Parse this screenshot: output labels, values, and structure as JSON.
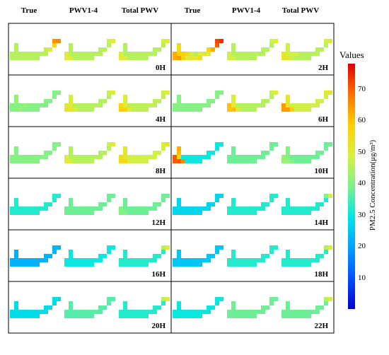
{
  "chart_data": {
    "type": "heatmap",
    "column_headers": [
      "True",
      "PWV1-4",
      "Total PWV",
      "True",
      "PWV1-4",
      "Total PWV"
    ],
    "panels": [
      {
        "hour": "0H",
        "values": {
          "True": [
            45,
            45,
            45,
            45,
            45,
            45,
            45,
            45,
            45,
            45,
            45,
            45,
            45,
            45,
            45,
            45,
            45,
            45,
            46,
            50,
            57,
            65,
            66
          ],
          "PWV1-4": [
            50,
            50,
            50,
            45,
            45,
            45,
            45,
            45,
            45,
            45,
            45,
            45,
            45,
            45,
            45,
            45,
            45,
            45,
            45,
            45,
            45,
            48,
            50
          ],
          "Total PWV": [
            50,
            50,
            50,
            45,
            45,
            45,
            45,
            45,
            45,
            45,
            45,
            45,
            45,
            45,
            45,
            45,
            45,
            45,
            45,
            45,
            45,
            48,
            50
          ]
        }
      },
      {
        "hour": "2H",
        "values": {
          "True": [
            62,
            62,
            64,
            58,
            55,
            55,
            58,
            58,
            55,
            48,
            45,
            50,
            52,
            52,
            55,
            50,
            52,
            50,
            56,
            62,
            70,
            72,
            74
          ],
          "PWV1-4": [
            48,
            48,
            48,
            45,
            45,
            45,
            45,
            45,
            45,
            45,
            45,
            45,
            45,
            45,
            45,
            45,
            45,
            45,
            45,
            45,
            45,
            48,
            50
          ],
          "Total PWV": [
            52,
            52,
            52,
            48,
            48,
            48,
            48,
            48,
            48,
            46,
            45,
            45,
            45,
            45,
            45,
            45,
            45,
            45,
            45,
            45,
            45,
            48,
            50
          ]
        }
      },
      {
        "hour": "4H",
        "values": {
          "True": [
            40,
            40,
            40,
            42,
            42,
            42,
            40,
            40,
            42,
            40,
            40,
            40,
            40,
            40,
            40,
            40,
            40,
            40,
            40,
            40,
            40,
            40,
            40
          ],
          "PWV1-4": [
            50,
            52,
            52,
            48,
            48,
            50,
            50,
            45,
            45,
            45,
            45,
            45,
            45,
            45,
            45,
            45,
            45,
            45,
            45,
            45,
            45,
            48,
            50
          ],
          "Total PWV": [
            57,
            58,
            58,
            50,
            50,
            50,
            50,
            46,
            46,
            46,
            46,
            46,
            46,
            46,
            46,
            46,
            46,
            46,
            46,
            46,
            46,
            48,
            50
          ]
        }
      },
      {
        "hour": "6H",
        "values": {
          "True": [
            40,
            40,
            40,
            40,
            40,
            40,
            40,
            40,
            40,
            40,
            40,
            40,
            40,
            40,
            40,
            40,
            40,
            40,
            40,
            40,
            40,
            40,
            40
          ],
          "PWV1-4": [
            60,
            60,
            60,
            50,
            50,
            50,
            50,
            45,
            45,
            45,
            45,
            45,
            45,
            45,
            45,
            45,
            45,
            45,
            45,
            45,
            45,
            48,
            50
          ],
          "Total PWV": [
            64,
            64,
            64,
            58,
            52,
            52,
            52,
            48,
            48,
            48,
            48,
            48,
            48,
            48,
            48,
            48,
            48,
            48,
            48,
            48,
            48,
            50,
            52
          ]
        }
      },
      {
        "hour": "8H",
        "values": {
          "True": [
            40,
            40,
            40,
            40,
            40,
            40,
            40,
            40,
            40,
            40,
            40,
            40,
            40,
            40,
            40,
            40,
            40,
            40,
            40,
            40,
            40,
            40,
            40
          ],
          "PWV1-4": [
            50,
            50,
            50,
            45,
            45,
            45,
            45,
            45,
            45,
            45,
            45,
            45,
            45,
            45,
            45,
            45,
            45,
            45,
            45,
            45,
            45,
            48,
            50
          ],
          "Total PWV": [
            55,
            55,
            55,
            50,
            50,
            52,
            52,
            48,
            48,
            48,
            48,
            48,
            48,
            48,
            48,
            48,
            48,
            48,
            48,
            48,
            48,
            50,
            52
          ]
        }
      },
      {
        "hour": "10H",
        "values": {
          "True": [
            70,
            70,
            70,
            66,
            62,
            60,
            58,
            30,
            30,
            30,
            30,
            30,
            30,
            30,
            30,
            30,
            30,
            30,
            30,
            30,
            30,
            30,
            30
          ],
          "PWV1-4": [
            38,
            38,
            38,
            38,
            38,
            38,
            38,
            38,
            38,
            38,
            38,
            38,
            38,
            38,
            38,
            38,
            38,
            38,
            38,
            38,
            38,
            38,
            38
          ],
          "Total PWV": [
            42,
            42,
            42,
            40,
            40,
            40,
            40,
            38,
            38,
            38,
            38,
            38,
            38,
            38,
            38,
            38,
            38,
            38,
            38,
            38,
            38,
            38,
            38
          ]
        }
      },
      {
        "hour": "12H",
        "values": {
          "True": [
            32,
            32,
            32,
            32,
            32,
            32,
            32,
            32,
            32,
            32,
            32,
            32,
            32,
            32,
            32,
            32,
            32,
            32,
            32,
            32,
            32,
            32,
            32
          ],
          "PWV1-4": [
            38,
            38,
            38,
            38,
            38,
            38,
            38,
            38,
            38,
            38,
            38,
            38,
            38,
            38,
            38,
            38,
            38,
            38,
            38,
            38,
            38,
            38,
            38
          ],
          "Total PWV": [
            40,
            40,
            40,
            38,
            38,
            38,
            38,
            38,
            38,
            38,
            38,
            38,
            38,
            38,
            38,
            38,
            38,
            38,
            38,
            38,
            38,
            38,
            38
          ]
        }
      },
      {
        "hour": "14H",
        "values": {
          "True": [
            27,
            27,
            27,
            27,
            27,
            27,
            27,
            27,
            27,
            27,
            27,
            27,
            27,
            27,
            27,
            27,
            27,
            27,
            27,
            27,
            27,
            27,
            27
          ],
          "PWV1-4": [
            32,
            32,
            32,
            32,
            32,
            32,
            32,
            32,
            32,
            32,
            32,
            32,
            32,
            32,
            32,
            32,
            32,
            32,
            32,
            32,
            32,
            32,
            32
          ],
          "Total PWV": [
            32,
            32,
            32,
            32,
            32,
            32,
            32,
            32,
            32,
            32,
            32,
            32,
            32,
            32,
            32,
            32,
            32,
            32,
            32,
            32,
            32,
            40,
            48
          ]
        }
      },
      {
        "hour": "16H",
        "values": {
          "True": [
            22,
            22,
            22,
            22,
            22,
            22,
            22,
            22,
            22,
            22,
            22,
            22,
            22,
            22,
            22,
            22,
            22,
            22,
            22,
            22,
            22,
            22,
            22
          ],
          "PWV1-4": [
            30,
            30,
            30,
            30,
            30,
            30,
            30,
            30,
            30,
            30,
            30,
            30,
            30,
            30,
            30,
            30,
            30,
            30,
            30,
            30,
            30,
            30,
            30
          ],
          "Total PWV": [
            32,
            32,
            32,
            32,
            32,
            32,
            32,
            32,
            32,
            32,
            32,
            32,
            32,
            32,
            32,
            32,
            32,
            32,
            32,
            32,
            32,
            45,
            50
          ]
        }
      },
      {
        "hour": "18H",
        "values": {
          "True": [
            25,
            25,
            25,
            25,
            25,
            25,
            25,
            25,
            25,
            25,
            25,
            25,
            25,
            25,
            25,
            25,
            25,
            25,
            25,
            25,
            25,
            25,
            25
          ],
          "PWV1-4": [
            32,
            32,
            32,
            32,
            32,
            32,
            32,
            32,
            32,
            32,
            32,
            32,
            32,
            32,
            32,
            32,
            32,
            32,
            32,
            32,
            32,
            32,
            32
          ],
          "Total PWV": [
            32,
            32,
            32,
            32,
            32,
            32,
            32,
            32,
            32,
            32,
            32,
            32,
            32,
            32,
            32,
            32,
            32,
            32,
            32,
            32,
            32,
            45,
            50
          ]
        }
      },
      {
        "hour": "20H",
        "values": {
          "True": [
            28,
            28,
            28,
            28,
            28,
            28,
            28,
            28,
            28,
            28,
            28,
            28,
            28,
            28,
            28,
            28,
            28,
            28,
            28,
            28,
            28,
            28,
            28
          ],
          "PWV1-4": [
            36,
            36,
            36,
            36,
            36,
            36,
            36,
            36,
            36,
            36,
            36,
            36,
            36,
            36,
            36,
            36,
            36,
            36,
            36,
            36,
            36,
            36,
            36
          ],
          "Total PWV": [
            32,
            32,
            32,
            32,
            32,
            32,
            32,
            32,
            32,
            32,
            32,
            32,
            32,
            32,
            32,
            32,
            32,
            32,
            32,
            32,
            32,
            45,
            50
          ]
        }
      },
      {
        "hour": "22H",
        "values": {
          "True": [
            30,
            30,
            30,
            30,
            30,
            30,
            30,
            30,
            30,
            30,
            30,
            30,
            30,
            30,
            30,
            30,
            30,
            30,
            30,
            30,
            30,
            30,
            30
          ],
          "PWV1-4": [
            38,
            38,
            38,
            38,
            38,
            38,
            38,
            38,
            38,
            38,
            38,
            38,
            38,
            38,
            38,
            38,
            38,
            38,
            38,
            38,
            38,
            38,
            38
          ],
          "Total PWV": [
            38,
            38,
            38,
            38,
            38,
            38,
            38,
            38,
            38,
            38,
            38,
            38,
            38,
            38,
            38,
            38,
            38,
            38,
            38,
            38,
            38,
            45,
            50
          ]
        }
      }
    ],
    "colorbar": {
      "title": "Values",
      "label": "PM2.5 Concentration(μg/m³)",
      "range": [
        0,
        78
      ],
      "ticks": [
        "70",
        "60",
        "50",
        "40",
        "30",
        "20",
        "10"
      ],
      "colormap": "jet"
    }
  }
}
